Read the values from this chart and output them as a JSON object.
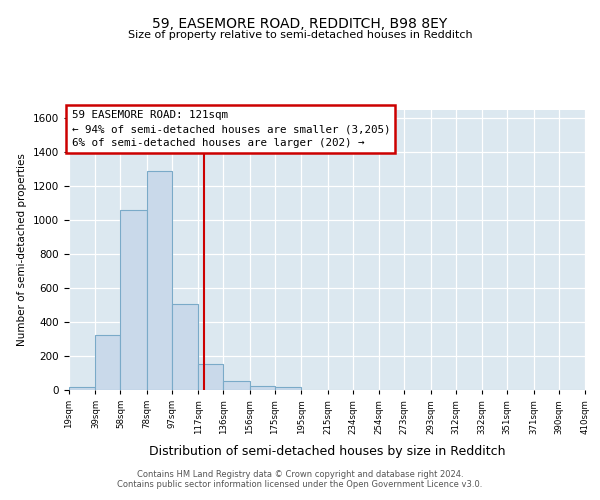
{
  "title": "59, EASEMORE ROAD, REDDITCH, B98 8EY",
  "subtitle": "Size of property relative to semi-detached houses in Redditch",
  "xlabel": "Distribution of semi-detached houses by size in Redditch",
  "ylabel": "Number of semi-detached properties",
  "bin_labels": [
    "19sqm",
    "39sqm",
    "58sqm",
    "78sqm",
    "97sqm",
    "117sqm",
    "136sqm",
    "156sqm",
    "175sqm",
    "195sqm",
    "215sqm",
    "234sqm",
    "254sqm",
    "273sqm",
    "293sqm",
    "312sqm",
    "332sqm",
    "351sqm",
    "371sqm",
    "390sqm",
    "410sqm"
  ],
  "bin_edges": [
    19,
    39,
    58,
    78,
    97,
    117,
    136,
    156,
    175,
    195,
    215,
    234,
    254,
    273,
    293,
    312,
    332,
    351,
    371,
    390,
    410
  ],
  "bar_heights": [
    15,
    325,
    1060,
    1290,
    505,
    155,
    55,
    25,
    15,
    0,
    0,
    0,
    0,
    0,
    0,
    0,
    0,
    0,
    0,
    0
  ],
  "bar_color": "#c9d9ea",
  "bar_edgecolor": "#7aaac8",
  "property_value": 121,
  "property_line_color": "#cc0000",
  "annotation_title": "59 EASEMORE ROAD: 121sqm",
  "annotation_line1": "← 94% of semi-detached houses are smaller (3,205)",
  "annotation_line2": "6% of semi-detached houses are larger (202) →",
  "annotation_box_edgecolor": "#cc0000",
  "ylim": [
    0,
    1650
  ],
  "yticks": [
    0,
    200,
    400,
    600,
    800,
    1000,
    1200,
    1400,
    1600
  ],
  "footer1": "Contains HM Land Registry data © Crown copyright and database right 2024.",
  "footer2": "Contains public sector information licensed under the Open Government Licence v3.0.",
  "fig_background": "#ffffff",
  "plot_background": "#dce8f0"
}
